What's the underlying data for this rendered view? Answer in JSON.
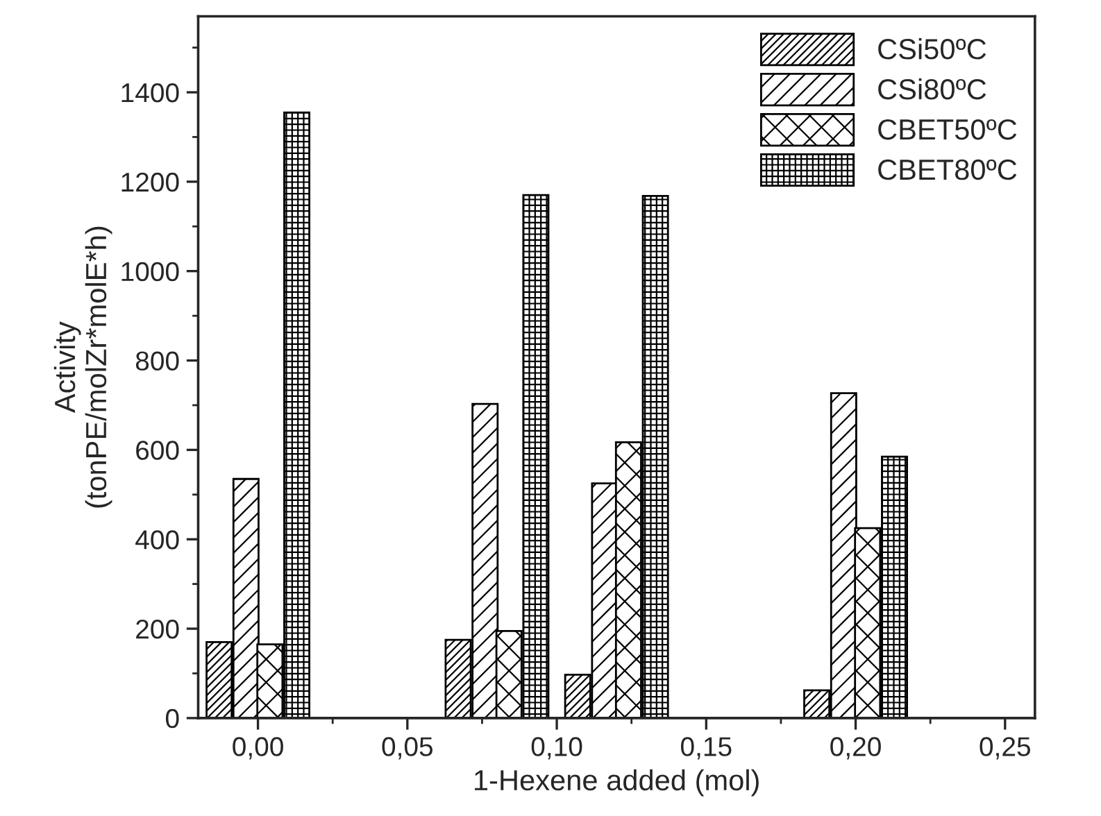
{
  "chart_data": {
    "type": "bar",
    "xlabel": "1-Hexene added (mol)",
    "ylabel": "Activity\n(tonPE/molZr*molE*h)",
    "series": [
      {
        "name": "CSi50ºC",
        "color": "#000000",
        "x": [
          -0.013,
          0.067,
          0.107,
          0.187
        ],
        "values": [
          170,
          175,
          97,
          62
        ]
      },
      {
        "name": "CSi80ºC",
        "color": "#000000",
        "x": [
          -0.004,
          0.076,
          0.116,
          0.196
        ],
        "values": [
          535,
          703,
          525,
          727
        ]
      },
      {
        "name": "CBET50ºC",
        "color": "#000000",
        "x": [
          0.004,
          0.084,
          0.124,
          0.204
        ],
        "values": [
          165,
          195,
          617,
          425
        ]
      },
      {
        "name": "CBET80ºC",
        "color": "#000000",
        "x": [
          0.013,
          0.093,
          0.133,
          0.213
        ],
        "values": [
          1355,
          1170,
          1168,
          585
        ]
      }
    ],
    "xlim": [
      -0.02,
      0.26
    ],
    "xticks": [
      {
        "value": 0,
        "label": "0,00"
      },
      {
        "value": 0.05,
        "label": "0,05"
      },
      {
        "value": 0.1,
        "label": "0,10"
      },
      {
        "value": 0.15,
        "label": "0,15"
      },
      {
        "value": 0.2,
        "label": "0,20"
      },
      {
        "value": 0.25,
        "label": "0,25"
      }
    ],
    "ylim": [
      0,
      1570
    ],
    "yticks": [
      0,
      200,
      400,
      600,
      800,
      1000,
      1200,
      1400
    ],
    "grid": false,
    "legend": "top right"
  }
}
